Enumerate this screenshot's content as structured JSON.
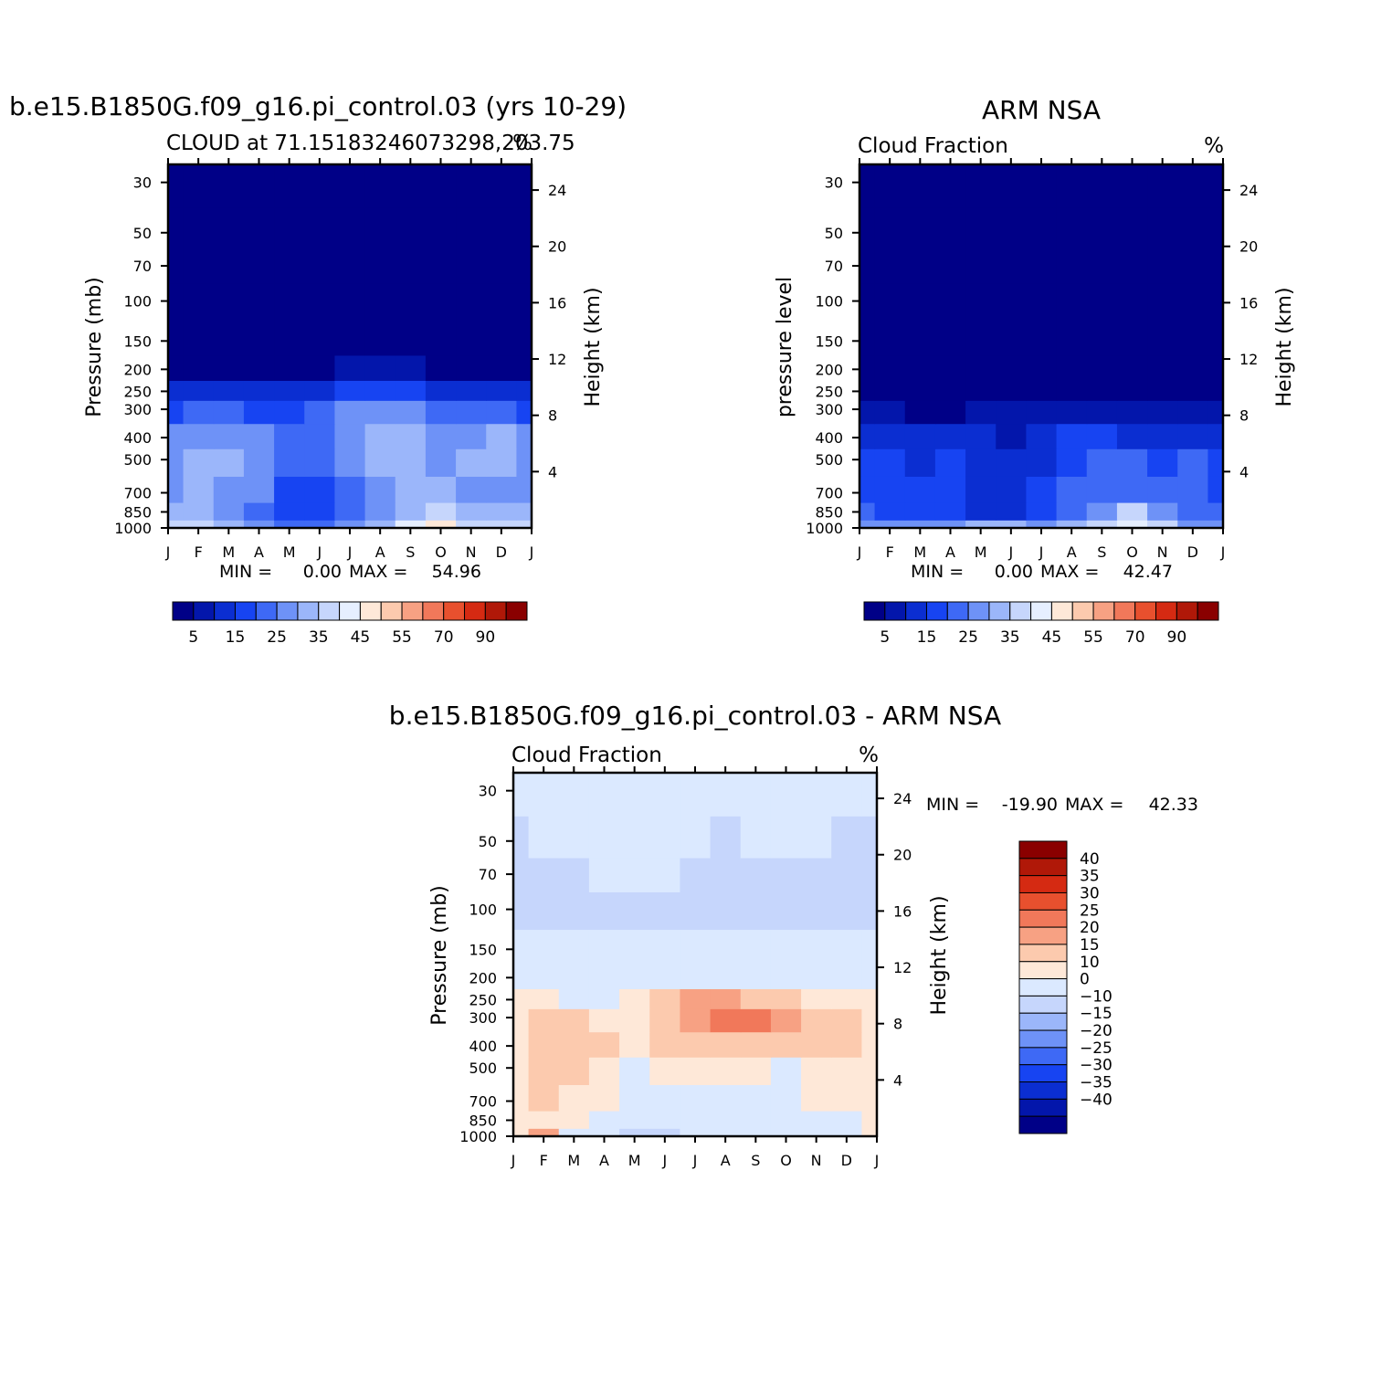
{
  "palette": {
    "seq": [
      "#000087",
      "#0316ab",
      "#0b2ed1",
      "#1744f2",
      "#3e69f5",
      "#6e92f7",
      "#9bb6fa",
      "#c6d6fc",
      "#e6efff",
      "#fee8d8",
      "#fccaae",
      "#f7a183",
      "#f1785a",
      "#e8502e",
      "#d52a12",
      "#b01808",
      "#8a0000"
    ],
    "diff": [
      "#000087",
      "#0316ab",
      "#0b2ed1",
      "#1744f2",
      "#3e69f5",
      "#6e92f7",
      "#9bb6fa",
      "#c6d6fc",
      "#dbe9ff",
      "#fee8d8",
      "#fccaae",
      "#f7a183",
      "#f1785a",
      "#e8502e",
      "#d52a12",
      "#b01808",
      "#8a0000"
    ]
  },
  "chart_data": [
    {
      "type": "heatmap",
      "title": "b.e15.B1850G.f09_g16.pi_control.03 (yrs 10-29)",
      "subtitle": "CLOUD at 71.15183246073298,203.75",
      "units": "%",
      "ylabel": "Pressure (mb)",
      "y2label": "Height (km)",
      "x_ticks": [
        "J",
        "F",
        "M",
        "A",
        "M",
        "J",
        "J",
        "A",
        "S",
        "O",
        "N",
        "D",
        "J"
      ],
      "y_ticks": [
        30,
        50,
        70,
        100,
        150,
        200,
        250,
        300,
        400,
        500,
        700,
        850,
        1000
      ],
      "y2_ticks": [
        4,
        8,
        12,
        16,
        20,
        24
      ],
      "stats": {
        "min_label": "MIN =",
        "min": "0.00",
        "max_label": "MAX =",
        "max": "54.96"
      },
      "colorbar_labels": [
        "5",
        "15",
        "25",
        "35",
        "45",
        "55",
        "70",
        "90"
      ],
      "field": {
        "levels": [
          1000,
          850,
          700,
          500,
          400,
          300,
          250,
          200,
          150,
          100,
          70,
          50,
          30
        ],
        "months": [
          "J",
          "F",
          "M",
          "A",
          "M",
          "J",
          "J",
          "A",
          "S",
          "O",
          "N",
          "D",
          "J"
        ],
        "values": [
          [
            35,
            35,
            30,
            28,
            20,
            22,
            25,
            30,
            40,
            45,
            38,
            35,
            35
          ],
          [
            30,
            30,
            28,
            22,
            15,
            18,
            22,
            28,
            33,
            38,
            33,
            30,
            30
          ],
          [
            28,
            30,
            28,
            25,
            18,
            18,
            24,
            28,
            30,
            30,
            28,
            28,
            28
          ],
          [
            28,
            32,
            30,
            25,
            20,
            20,
            25,
            30,
            30,
            28,
            30,
            33,
            28
          ],
          [
            25,
            28,
            28,
            25,
            22,
            22,
            28,
            33,
            30,
            28,
            28,
            30,
            25
          ],
          [
            18,
            20,
            20,
            18,
            18,
            20,
            25,
            28,
            25,
            22,
            20,
            20,
            18
          ],
          [
            10,
            12,
            12,
            10,
            10,
            12,
            15,
            18,
            15,
            12,
            12,
            10,
            10
          ],
          [
            0,
            0,
            0,
            0,
            0,
            0,
            5,
            8,
            5,
            0,
            0,
            0,
            0
          ],
          [
            0,
            0,
            0,
            0,
            0,
            0,
            0,
            0,
            0,
            0,
            0,
            0,
            0
          ],
          [
            0,
            0,
            0,
            0,
            0,
            0,
            0,
            0,
            0,
            0,
            0,
            0,
            0
          ],
          [
            0,
            0,
            0,
            0,
            0,
            0,
            0,
            0,
            0,
            0,
            0,
            0,
            0
          ],
          [
            0,
            0,
            0,
            0,
            0,
            0,
            0,
            0,
            0,
            0,
            0,
            0,
            0
          ],
          [
            0,
            0,
            0,
            0,
            0,
            0,
            0,
            0,
            0,
            0,
            0,
            0,
            0
          ]
        ]
      }
    },
    {
      "type": "heatmap",
      "title": "ARM NSA",
      "subtitle": "Cloud Fraction",
      "units": "%",
      "ylabel": "pressure level",
      "y2label": "Height (km)",
      "x_ticks": [
        "J",
        "F",
        "M",
        "A",
        "M",
        "J",
        "J",
        "A",
        "S",
        "O",
        "N",
        "D",
        "J"
      ],
      "y_ticks": [
        30,
        50,
        70,
        100,
        150,
        200,
        250,
        300,
        400,
        500,
        700,
        850,
        1000
      ],
      "y2_ticks": [
        4,
        8,
        12,
        16,
        20,
        24
      ],
      "stats": {
        "min_label": "MIN =",
        "min": "0.00",
        "max_label": "MAX =",
        "max": "42.47"
      },
      "colorbar_labels": [
        "5",
        "15",
        "25",
        "35",
        "45",
        "55",
        "70",
        "90"
      ],
      "field": {
        "levels": [
          1000,
          850,
          700,
          500,
          400,
          300,
          250,
          200,
          150,
          100,
          70,
          50,
          30
        ],
        "months": [
          "J",
          "F",
          "M",
          "A",
          "M",
          "J",
          "J",
          "A",
          "S",
          "O",
          "N",
          "D",
          "J"
        ],
        "values": [
          [
            25,
            25,
            25,
            28,
            30,
            30,
            28,
            30,
            35,
            42,
            35,
            28,
            25
          ],
          [
            20,
            18,
            15,
            15,
            10,
            10,
            15,
            20,
            28,
            35,
            28,
            22,
            20
          ],
          [
            18,
            15,
            15,
            15,
            12,
            10,
            15,
            20,
            22,
            22,
            22,
            20,
            18
          ],
          [
            15,
            15,
            12,
            15,
            12,
            10,
            12,
            18,
            20,
            20,
            18,
            20,
            15
          ],
          [
            12,
            12,
            10,
            10,
            10,
            5,
            10,
            15,
            15,
            12,
            12,
            12,
            12
          ],
          [
            5,
            5,
            4,
            4,
            5,
            5,
            8,
            8,
            5,
            5,
            5,
            5,
            5
          ],
          [
            0,
            0,
            0,
            0,
            0,
            0,
            2,
            2,
            0,
            0,
            0,
            0,
            0
          ],
          [
            0,
            0,
            0,
            0,
            0,
            0,
            0,
            0,
            0,
            0,
            0,
            0,
            0
          ],
          [
            0,
            0,
            0,
            0,
            0,
            0,
            0,
            0,
            0,
            0,
            0,
            0,
            0
          ],
          [
            0,
            0,
            0,
            0,
            0,
            0,
            0,
            0,
            0,
            0,
            0,
            0,
            0
          ],
          [
            0,
            0,
            0,
            0,
            0,
            0,
            0,
            0,
            0,
            0,
            0,
            0,
            0
          ],
          [
            0,
            0,
            0,
            0,
            0,
            0,
            0,
            0,
            0,
            0,
            0,
            0,
            0
          ],
          [
            0,
            0,
            0,
            0,
            0,
            0,
            0,
            0,
            0,
            0,
            0,
            0,
            0
          ]
        ]
      }
    },
    {
      "type": "heatmap",
      "title": "b.e15.B1850G.f09_g16.pi_control.03 - ARM NSA",
      "subtitle": "Cloud Fraction",
      "units": "%",
      "ylabel": "Pressure (mb)",
      "y2label": "Height (km)",
      "x_ticks": [
        "J",
        "F",
        "M",
        "A",
        "M",
        "J",
        "J",
        "A",
        "S",
        "O",
        "N",
        "D",
        "J"
      ],
      "y_ticks": [
        30,
        50,
        70,
        100,
        150,
        200,
        250,
        300,
        400,
        500,
        700,
        850,
        1000
      ],
      "y2_ticks": [
        4,
        8,
        12,
        16,
        20,
        24
      ],
      "stats": {
        "min_label": "MIN =",
        "min": "-19.90",
        "max_label": "MAX =",
        "max": "42.33"
      },
      "colorbar_labels": [
        "40",
        "35",
        "30",
        "25",
        "20",
        "15",
        "10",
        "0",
        "-10",
        "-15",
        "-20",
        "-25",
        "-30",
        "-35",
        "-40"
      ],
      "field": {
        "levels": [
          1000,
          850,
          700,
          500,
          400,
          300,
          250,
          200,
          150,
          100,
          70,
          50,
          30
        ],
        "months": [
          "J",
          "F",
          "M",
          "A",
          "M",
          "J",
          "J",
          "A",
          "S",
          "O",
          "N",
          "D",
          "J"
        ],
        "values": [
          [
            10,
            20,
            5,
            0,
            -10,
            -5,
            0,
            0,
            5,
            3,
            3,
            7,
            10
          ],
          [
            10,
            12,
            12,
            7,
            5,
            8,
            7,
            8,
            5,
            3,
            3,
            8,
            10
          ],
          [
            10,
            15,
            13,
            10,
            6,
            8,
            9,
            8,
            8,
            8,
            10,
            13,
            10
          ],
          [
            13,
            17,
            18,
            10,
            8,
            10,
            13,
            12,
            10,
            8,
            12,
            13,
            13
          ],
          [
            13,
            16,
            18,
            15,
            12,
            17,
            18,
            18,
            15,
            16,
            16,
            18,
            13
          ],
          [
            13,
            15,
            15,
            14,
            13,
            17,
            23,
            25,
            25,
            22,
            18,
            15,
            13
          ],
          [
            10,
            10,
            8,
            8,
            10,
            17,
            20,
            20,
            18,
            15,
            14,
            10,
            10
          ],
          [
            0,
            0,
            0,
            0,
            0,
            4,
            8,
            6,
            4,
            0,
            0,
            0,
            0
          ],
          [
            0,
            0,
            0,
            0,
            0,
            0,
            0,
            0,
            0,
            0,
            0,
            0,
            0
          ],
          [
            -3,
            -3,
            -3,
            -3,
            -3,
            -3,
            -3,
            -3,
            -3,
            -3,
            -3,
            -3,
            -3
          ],
          [
            -3,
            -3,
            -3,
            1,
            1,
            1,
            -3,
            -3,
            -3,
            -3,
            -3,
            -3,
            -3
          ],
          [
            -3,
            1,
            1,
            1,
            1,
            1,
            1,
            -3,
            1,
            1,
            1,
            -3,
            -3
          ],
          [
            1,
            1,
            1,
            1,
            1,
            1,
            1,
            1,
            1,
            1,
            1,
            1,
            1
          ]
        ]
      }
    }
  ]
}
